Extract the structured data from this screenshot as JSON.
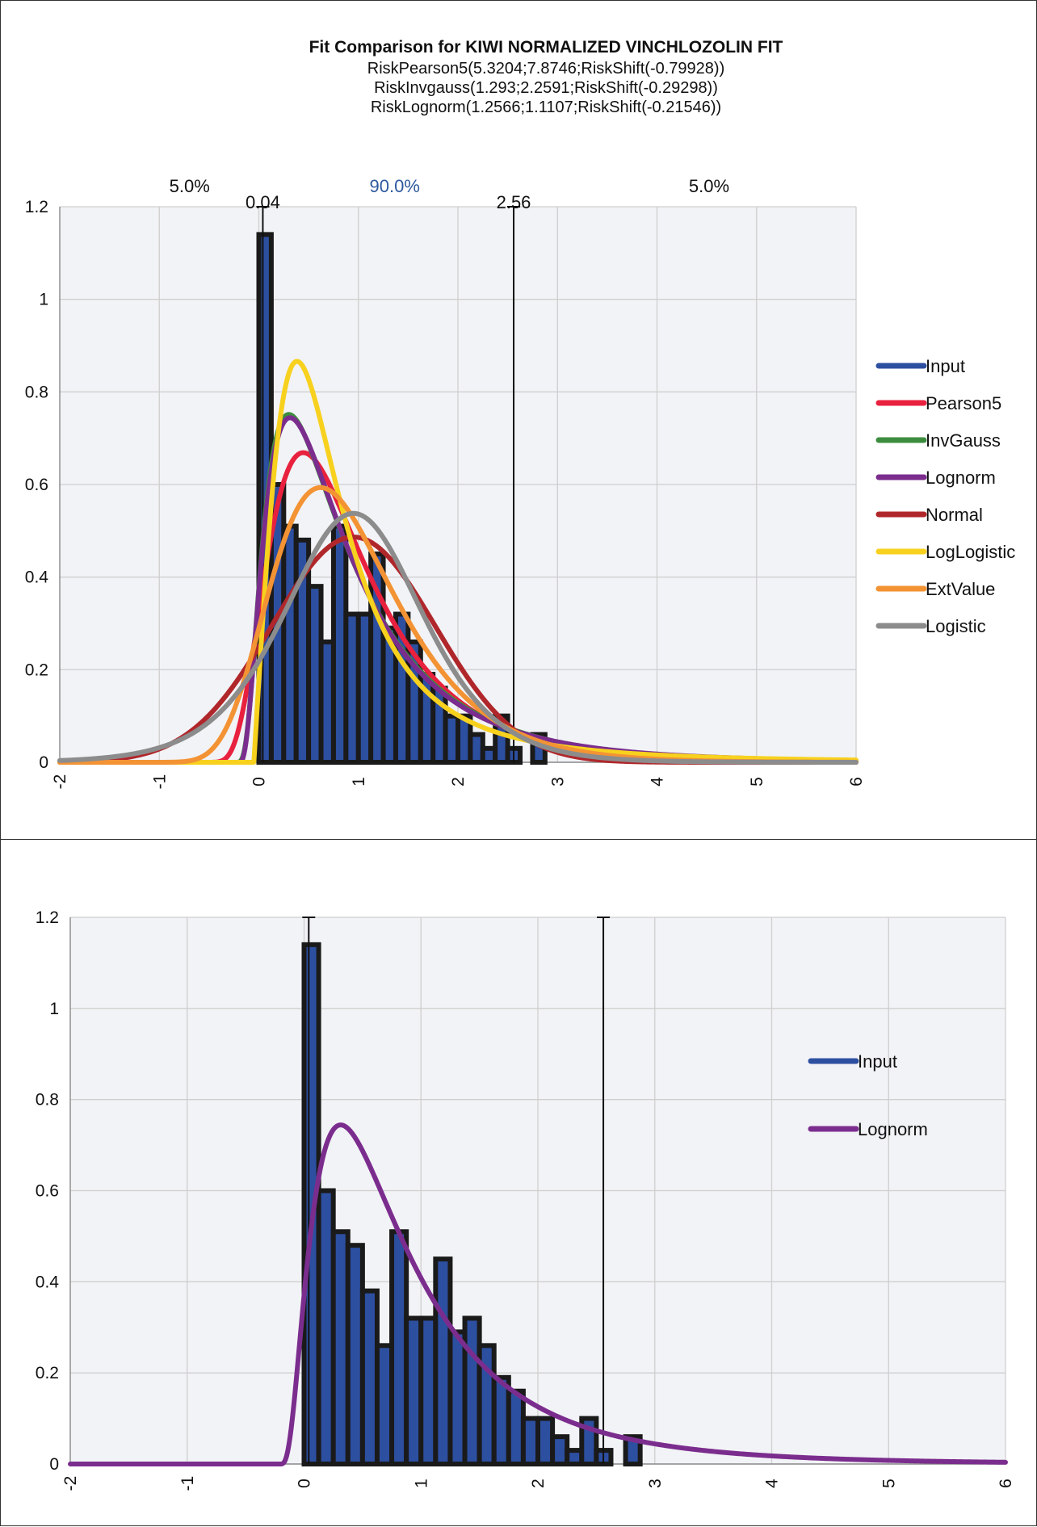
{
  "colors": {
    "Input": "#2d4fa0",
    "Pearson5": "#e8213e",
    "InvGauss": "#3c8d3e",
    "Lognorm": "#7b2d8e",
    "Normal": "#b0272b",
    "LogLogistic": "#f7d11e",
    "ExtValue": "#f39334",
    "Logistic": "#8c8c8c",
    "bar_edge": "#1a1a1a",
    "grid": "#cfcfcf",
    "plot_bg": "#f2f3f6",
    "pct_mid": "#2d5a9e"
  },
  "chart_data": [
    {
      "type": "histogram_with_fitted_curves",
      "title": "Fit Comparison for KIWI NORMALIZED VINCHLOZOLIN FIT",
      "subtitle_lines": [
        "RiskPearson5(5.3204;7.8746;RiskShift(-0.79928))",
        "RiskInvgauss(1.293;2.2591;RiskShift(-0.29298))",
        "RiskLognorm(1.2566;1.1107;RiskShift(-0.21546))"
      ],
      "xlim": [
        -2,
        6
      ],
      "ylim": [
        0,
        1.2
      ],
      "x_ticks": [
        "-2",
        "-1",
        "0",
        "1",
        "2",
        "3",
        "4",
        "5",
        "6"
      ],
      "y_ticks": [
        "0",
        "0.2",
        "0.4",
        "0.6",
        "0.8",
        "1",
        "1.2"
      ],
      "grid": true,
      "legend_position": "right",
      "percentile_markers": {
        "lower_value": "0.04",
        "upper_value": "2.56",
        "lower_x": 0.04,
        "upper_x": 2.56,
        "left_pct": "5.0%",
        "mid_pct": "90.0%",
        "right_pct": "5.0%"
      },
      "histogram": {
        "name": "Input",
        "bin_start": 0,
        "bin_width": 0.125,
        "values": [
          1.14,
          0.6,
          0.51,
          0.48,
          0.38,
          0.26,
          0.51,
          0.32,
          0.32,
          0.45,
          0.29,
          0.32,
          0.26,
          0.19,
          0.16,
          0.1,
          0.1,
          0.06,
          0.03,
          0.1,
          0.03,
          0.0,
          0.06,
          0.0
        ]
      },
      "series": [
        {
          "name": "Input"
        },
        {
          "name": "Pearson5",
          "dist": "pearson5",
          "params": [
            5.3204,
            7.8746,
            -0.79928
          ]
        },
        {
          "name": "InvGauss",
          "dist": "invgauss",
          "params": [
            1.293,
            2.2591,
            -0.29298
          ]
        },
        {
          "name": "Lognorm",
          "dist": "lognorm",
          "params": [
            1.2566,
            1.1107,
            -0.21546
          ]
        },
        {
          "name": "Normal",
          "dist": "normal",
          "params": [
            0.95,
            0.82
          ]
        },
        {
          "name": "LogLogistic",
          "dist": "loglogistic",
          "params": [
            -0.05,
            0.75,
            2.0
          ]
        },
        {
          "name": "ExtValue",
          "dist": "extvalue",
          "params": [
            0.62,
            0.62
          ]
        },
        {
          "name": "Logistic",
          "dist": "logistic",
          "params": [
            0.95,
            0.465
          ]
        }
      ]
    },
    {
      "type": "histogram_with_fitted_curves",
      "xlim": [
        -2,
        6
      ],
      "ylim": [
        0,
        1.2
      ],
      "x_ticks": [
        "-2",
        "-1",
        "0",
        "1",
        "2",
        "3",
        "4",
        "5",
        "6"
      ],
      "y_ticks": [
        "0",
        "0.2",
        "0.4",
        "0.6",
        "0.8",
        "1",
        "1.2"
      ],
      "grid": true,
      "legend_position": "right",
      "marker_lines_x": [
        0.04,
        2.56
      ],
      "histogram": {
        "name": "Input",
        "bin_start": 0,
        "bin_width": 0.125,
        "values": [
          1.14,
          0.6,
          0.51,
          0.48,
          0.38,
          0.26,
          0.51,
          0.32,
          0.32,
          0.45,
          0.29,
          0.32,
          0.26,
          0.19,
          0.16,
          0.1,
          0.1,
          0.06,
          0.03,
          0.1,
          0.03,
          0.0,
          0.06,
          0.0
        ]
      },
      "series": [
        {
          "name": "Input"
        },
        {
          "name": "Lognorm",
          "dist": "lognorm",
          "params": [
            1.2566,
            1.1107,
            -0.21546
          ]
        }
      ]
    }
  ]
}
